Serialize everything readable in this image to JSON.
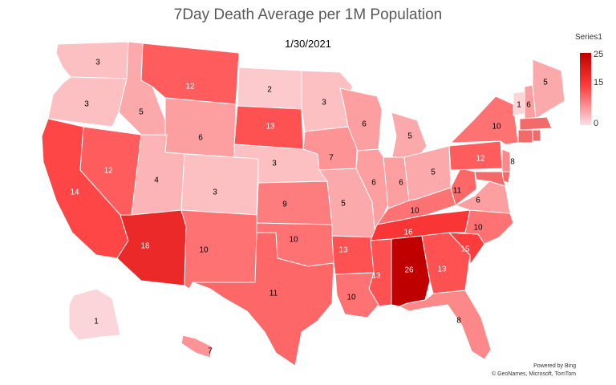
{
  "title": "7Day Death Average per 1M Population",
  "subtitle": "1/30/2021",
  "legend": {
    "title": "Series1",
    "max": "25",
    "mid": "15",
    "min": "0",
    "colors": {
      "high": "#c00000",
      "mid": "#ff3b3b",
      "low": "#fbe0e4"
    }
  },
  "attribution": {
    "line1": "Powered by Bing",
    "line2": "© GeoNames, Microsoft, TomTom"
  },
  "chart_data": {
    "type": "heatmap",
    "title": "7Day Death Average per 1M Population",
    "subtitle": "1/30/2021",
    "legend_placement": "right",
    "color_scale": {
      "min": 0,
      "mid": 15,
      "max": 25
    },
    "states": [
      {
        "state": "WA",
        "value": 3
      },
      {
        "state": "OR",
        "value": 3
      },
      {
        "state": "CA",
        "value": 14
      },
      {
        "state": "NV",
        "value": 12
      },
      {
        "state": "ID",
        "value": 5
      },
      {
        "state": "MT",
        "value": 12
      },
      {
        "state": "WY",
        "value": 6
      },
      {
        "state": "UT",
        "value": 4
      },
      {
        "state": "AZ",
        "value": 18
      },
      {
        "state": "CO",
        "value": 3
      },
      {
        "state": "NM",
        "value": 10
      },
      {
        "state": "ND",
        "value": 2
      },
      {
        "state": "SD",
        "value": 13
      },
      {
        "state": "NE",
        "value": 3
      },
      {
        "state": "KS",
        "value": 9
      },
      {
        "state": "OK",
        "value": 10
      },
      {
        "state": "TX",
        "value": 11
      },
      {
        "state": "MN",
        "value": 3
      },
      {
        "state": "IA",
        "value": 7
      },
      {
        "state": "MO",
        "value": 5
      },
      {
        "state": "AR",
        "value": 13
      },
      {
        "state": "LA",
        "value": 10
      },
      {
        "state": "WI",
        "value": 6
      },
      {
        "state": "IL",
        "value": 6
      },
      {
        "state": "MI",
        "value": 5
      },
      {
        "state": "IN",
        "value": 6
      },
      {
        "state": "OH",
        "value": 5
      },
      {
        "state": "KY",
        "value": 10
      },
      {
        "state": "TN",
        "value": 16
      },
      {
        "state": "MS",
        "value": 13
      },
      {
        "state": "AL",
        "value": 26
      },
      {
        "state": "GA",
        "value": 13
      },
      {
        "state": "FL",
        "value": 8
      },
      {
        "state": "SC",
        "value": 15
      },
      {
        "state": "NC",
        "value": 10
      },
      {
        "state": "VA",
        "value": 6
      },
      {
        "state": "WV",
        "value": 11
      },
      {
        "state": "PA",
        "value": 12
      },
      {
        "state": "NY",
        "value": 10
      },
      {
        "state": "NJ",
        "value": 8
      },
      {
        "state": "VT",
        "value": 1
      },
      {
        "state": "NH",
        "value": 6
      },
      {
        "state": "ME",
        "value": 5
      },
      {
        "state": "MA"
      },
      {
        "state": "CT"
      },
      {
        "state": "RI"
      },
      {
        "state": "MD"
      },
      {
        "state": "DE"
      },
      {
        "state": "AK",
        "value": 1
      },
      {
        "state": "HI",
        "value": 7
      }
    ]
  }
}
